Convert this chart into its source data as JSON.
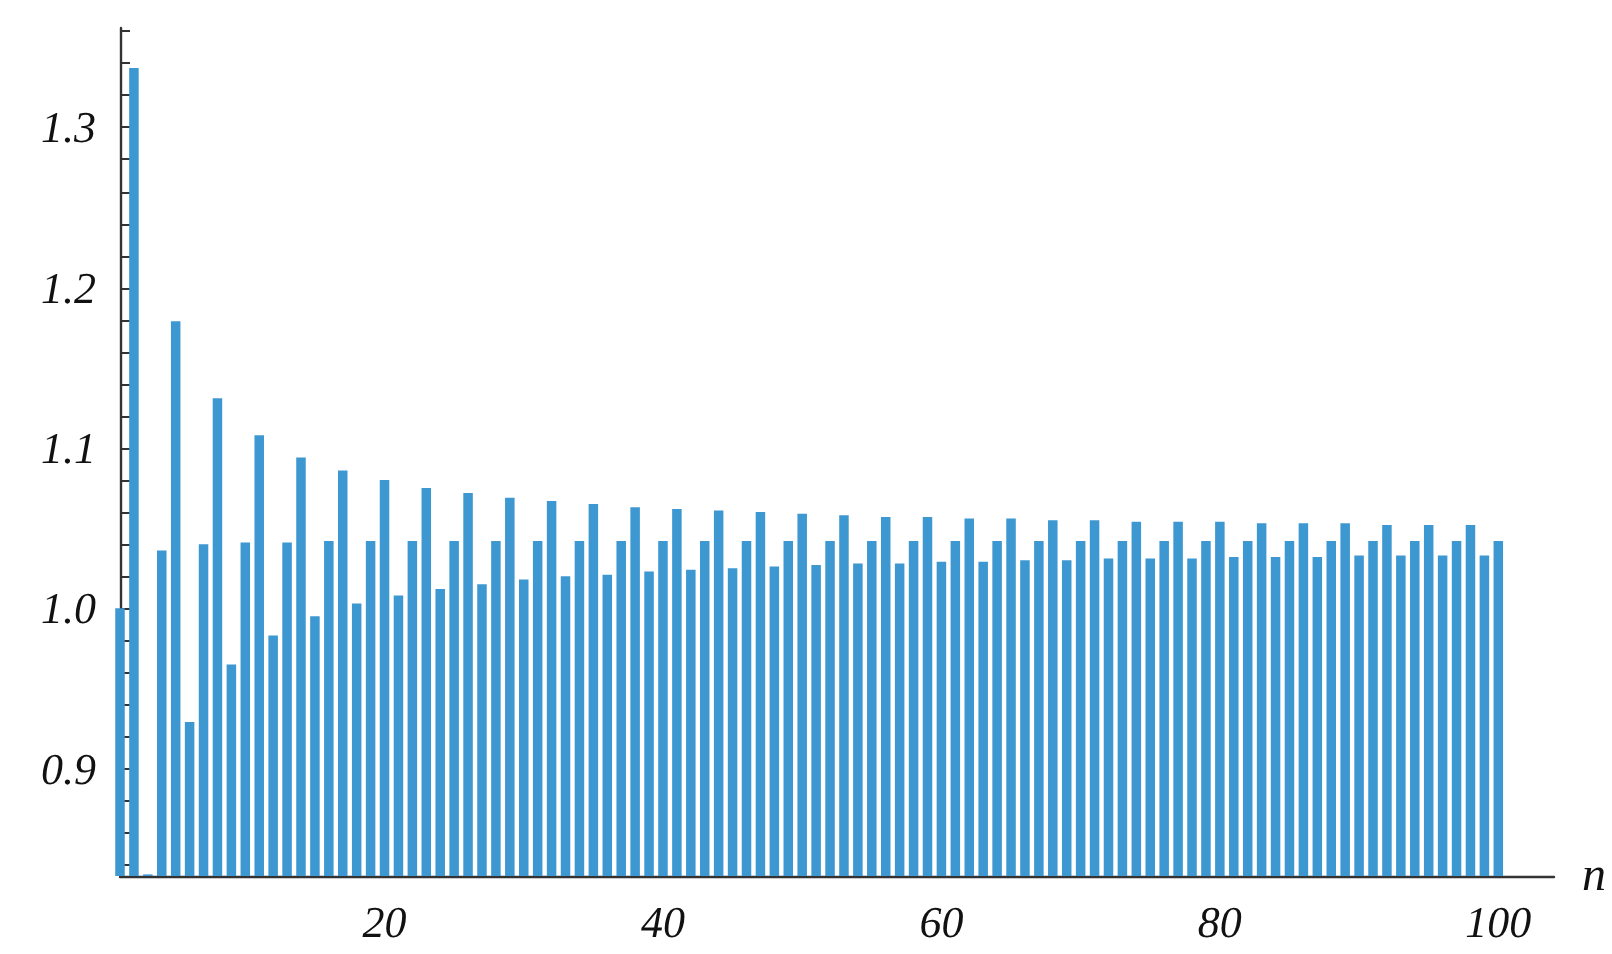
{
  "chart_data": {
    "type": "bar",
    "xlabel": "n",
    "x": [
      1,
      2,
      3,
      4,
      5,
      6,
      7,
      8,
      9,
      10,
      11,
      12,
      13,
      14,
      15,
      16,
      17,
      18,
      19,
      20,
      21,
      22,
      23,
      24,
      25,
      26,
      27,
      28,
      29,
      30,
      31,
      32,
      33,
      34,
      35,
      36,
      37,
      38,
      39,
      40,
      41,
      42,
      43,
      44,
      45,
      46,
      47,
      48,
      49,
      50,
      51,
      52,
      53,
      54,
      55,
      56,
      57,
      58,
      59,
      60,
      61,
      62,
      63,
      64,
      65,
      66,
      67,
      68,
      69,
      70,
      71,
      72,
      73,
      74,
      75,
      76,
      77,
      78,
      79,
      80,
      81,
      82,
      83,
      84,
      85,
      86,
      87,
      88,
      89,
      90,
      91,
      92,
      93,
      94,
      95,
      96,
      97,
      98,
      99,
      100
    ],
    "values": [
      1.0,
      1.337,
      0.834,
      1.036,
      1.179,
      0.929,
      1.04,
      1.131,
      0.965,
      1.041,
      1.108,
      0.983,
      1.041,
      1.094,
      0.995,
      1.042,
      1.086,
      1.003,
      1.042,
      1.08,
      1.008,
      1.042,
      1.075,
      1.012,
      1.042,
      1.072,
      1.015,
      1.042,
      1.069,
      1.018,
      1.042,
      1.067,
      1.02,
      1.042,
      1.065,
      1.021,
      1.042,
      1.063,
      1.023,
      1.042,
      1.062,
      1.024,
      1.042,
      1.061,
      1.025,
      1.042,
      1.06,
      1.026,
      1.042,
      1.059,
      1.027,
      1.042,
      1.058,
      1.028,
      1.042,
      1.057,
      1.028,
      1.042,
      1.057,
      1.029,
      1.042,
      1.056,
      1.029,
      1.042,
      1.056,
      1.03,
      1.042,
      1.055,
      1.03,
      1.042,
      1.055,
      1.031,
      1.042,
      1.054,
      1.031,
      1.042,
      1.054,
      1.031,
      1.042,
      1.054,
      1.032,
      1.042,
      1.053,
      1.032,
      1.042,
      1.053,
      1.032,
      1.042,
      1.053,
      1.033,
      1.042,
      1.052,
      1.033,
      1.042,
      1.052,
      1.033,
      1.042,
      1.052,
      1.033,
      1.042
    ],
    "color": "#3d97d0",
    "xlim": [
      1,
      104
    ],
    "xticks": [
      {
        "value": 5,
        "label": null
      },
      {
        "value": 10,
        "label": null
      },
      {
        "value": 15,
        "label": null
      },
      20,
      {
        "value": 25,
        "label": null
      },
      {
        "value": 30,
        "label": null
      },
      {
        "value": 35,
        "label": null
      },
      40,
      {
        "value": 45,
        "label": null
      },
      {
        "value": 50,
        "label": null
      },
      {
        "value": 55,
        "label": null
      },
      60,
      {
        "value": 65,
        "label": null
      },
      {
        "value": 70,
        "label": null
      },
      {
        "value": 75,
        "label": null
      },
      80,
      {
        "value": 85,
        "label": null
      },
      {
        "value": 90,
        "label": null
      },
      {
        "value": 95,
        "label": null
      },
      100
    ],
    "ylim": [
      0.833,
      1.362
    ],
    "yticks": [
      {
        "value": 0.84,
        "label": null
      },
      {
        "value": 0.86,
        "label": null
      },
      {
        "value": 0.88,
        "label": null
      },
      0.9,
      {
        "value": 0.92,
        "label": null
      },
      {
        "value": 0.94,
        "label": null
      },
      {
        "value": 0.96,
        "label": null
      },
      {
        "value": 0.98,
        "label": null
      },
      {
        "value": 1.0,
        "label": "1.0"
      },
      {
        "value": 1.02,
        "label": null
      },
      {
        "value": 1.04,
        "label": null
      },
      {
        "value": 1.06,
        "label": null
      },
      {
        "value": 1.08,
        "label": null
      },
      1.1,
      {
        "value": 1.12,
        "label": null
      },
      {
        "value": 1.14,
        "label": null
      },
      {
        "value": 1.16,
        "label": null
      },
      {
        "value": 1.18,
        "label": null
      },
      1.2,
      {
        "value": 1.22,
        "label": null
      },
      {
        "value": 1.24,
        "label": null
      },
      {
        "value": 1.26,
        "label": null
      },
      {
        "value": 1.28,
        "label": null
      },
      1.3,
      {
        "value": 1.32,
        "label": null
      },
      {
        "value": 1.34,
        "label": null
      },
      {
        "value": 1.36,
        "label": null
      }
    ]
  }
}
